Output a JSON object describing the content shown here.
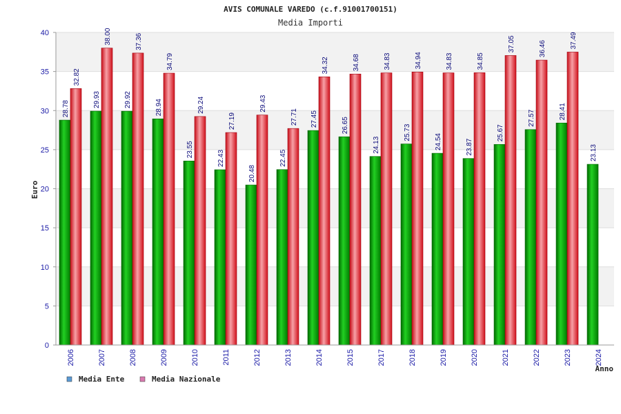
{
  "chart_data": {
    "type": "bar",
    "title": "AVIS COMUNALE VAREDO (c.f.91001700151)",
    "subtitle": "Media Importi",
    "xlabel": "Anno",
    "ylabel": "Euro",
    "ylim": [
      0,
      40
    ],
    "yticks": [
      0,
      5,
      10,
      15,
      20,
      25,
      30,
      35,
      40
    ],
    "grid": true,
    "legend_position": "bottom-left",
    "categories": [
      "2006",
      "2007",
      "2008",
      "2009",
      "2010",
      "2011",
      "2012",
      "2013",
      "2014",
      "2015",
      "2017",
      "2018",
      "2019",
      "2020",
      "2021",
      "2022",
      "2023",
      "2024"
    ],
    "series": [
      {
        "name": "Media Ente",
        "color": "#00a000",
        "legend_color": "#5b9bd5",
        "values": [
          28.78,
          29.93,
          29.92,
          28.94,
          23.55,
          22.43,
          20.48,
          22.45,
          27.45,
          26.65,
          24.13,
          25.73,
          24.54,
          23.87,
          25.67,
          27.57,
          28.41,
          23.13
        ],
        "labels": [
          "28.78",
          "29.93",
          "29.92",
          "28.94",
          "23.55",
          "22.43",
          "20.48",
          "22.45",
          "27.45",
          "26.65",
          "24.13",
          "25.73",
          "24.54",
          "23.87",
          "25.67",
          "27.57",
          "28.41",
          "23.13"
        ]
      },
      {
        "name": "Media Nazionale",
        "color": "#e8202a",
        "legend_color": "#d97ab0",
        "values": [
          32.82,
          38.0,
          37.36,
          34.79,
          29.24,
          27.19,
          29.43,
          27.71,
          34.32,
          34.68,
          34.83,
          34.94,
          34.83,
          34.85,
          37.05,
          36.46,
          37.49,
          null
        ],
        "labels": [
          "32.82",
          "38.00",
          "37.36",
          "34.79",
          "29.24",
          "27.19",
          "29.43",
          "27.71",
          "34.32",
          "34.68",
          "34.83",
          "34.94",
          "34.83",
          "34.85",
          "37.05",
          "36.46",
          "37.49",
          null
        ]
      }
    ]
  }
}
